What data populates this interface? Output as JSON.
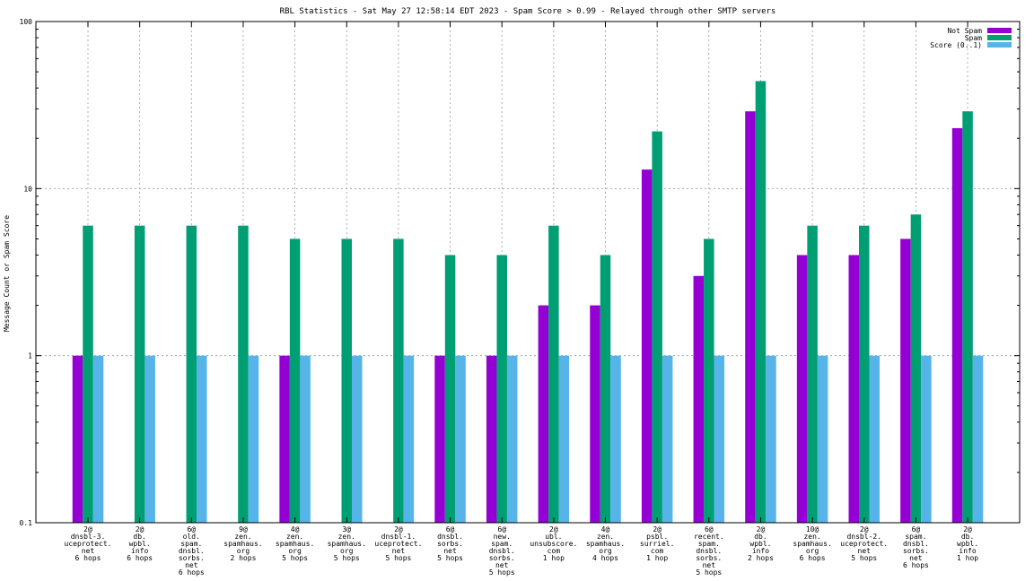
{
  "chart_data": {
    "type": "bar",
    "title": "RBL Statistics - Sat May 27 12:58:14 EDT 2023 - Spam Score > 0.99 - Relayed through other SMTP servers",
    "ylabel": "Message Count or Spam Score",
    "xlabel": "",
    "yscale": "log",
    "ylim": [
      0.1,
      100
    ],
    "yticks": [
      0.1,
      1,
      10,
      100
    ],
    "ytick_labels": [
      "0.1",
      "1",
      "10",
      "100"
    ],
    "grid": true,
    "legend_position": "top-right",
    "categories": [
      [
        "2@",
        "dnsbl-3.",
        "uceprotect.",
        "net",
        "6 hops"
      ],
      [
        "2@",
        "db.",
        "wpbl.",
        "info",
        "6 hops"
      ],
      [
        "6@",
        "old.",
        "spam.",
        "dnsbl.",
        "sorbs.",
        "net",
        "6 hops"
      ],
      [
        "9@",
        "zen.",
        "spamhaus.",
        "org",
        "2 hops"
      ],
      [
        "4@",
        "zen.",
        "spamhaus.",
        "org",
        "5 hops"
      ],
      [
        "3@",
        "zen.",
        "spamhaus.",
        "org",
        "5 hops"
      ],
      [
        "2@",
        "dnsbl-1.",
        "uceprotect.",
        "net",
        "5 hops"
      ],
      [
        "6@",
        "dnsbl.",
        "sorbs.",
        "net",
        "5 hops"
      ],
      [
        "6@",
        "new.",
        "spam.",
        "dnsbl.",
        "sorbs.",
        "net",
        "5 hops"
      ],
      [
        "2@",
        "ubl.",
        "unsubscore.",
        "com",
        "1 hop"
      ],
      [
        "4@",
        "zen.",
        "spamhaus.",
        "org",
        "4 hops"
      ],
      [
        "2@",
        "psbl.",
        "surriel.",
        "com",
        "1 hop"
      ],
      [
        "6@",
        "recent.",
        "spam.",
        "dnsbl.",
        "sorbs.",
        "net",
        "5 hops"
      ],
      [
        "2@",
        "db.",
        "wpbl.",
        "info",
        "2 hops"
      ],
      [
        "10@",
        "zen.",
        "spamhaus.",
        "org",
        "6 hops"
      ],
      [
        "2@",
        "dnsbl-2.",
        "uceprotect.",
        "net",
        "5 hops"
      ],
      [
        "6@",
        "spam.",
        "dnsbl.",
        "sorbs.",
        "net",
        "6 hops"
      ],
      [
        "2@",
        "db.",
        "wpbl.",
        "info",
        "1 hop"
      ]
    ],
    "series": [
      {
        "name": "Not Spam",
        "color": "#9400d3",
        "values": [
          1,
          null,
          null,
          null,
          1,
          null,
          null,
          1,
          1,
          2,
          2,
          13,
          3,
          29,
          4,
          4,
          5,
          23
        ]
      },
      {
        "name": "Spam",
        "color": "#009e73",
        "values": [
          6,
          6,
          6,
          6,
          5,
          5,
          5,
          4,
          4,
          6,
          4,
          22,
          5,
          44,
          6,
          6,
          7,
          29
        ]
      },
      {
        "name": "Score (0..1)",
        "color": "#56b4e9",
        "values": [
          1,
          1,
          1,
          1,
          1,
          1,
          1,
          1,
          1,
          1,
          1,
          1,
          1,
          1,
          1,
          1,
          1,
          1
        ]
      }
    ]
  }
}
